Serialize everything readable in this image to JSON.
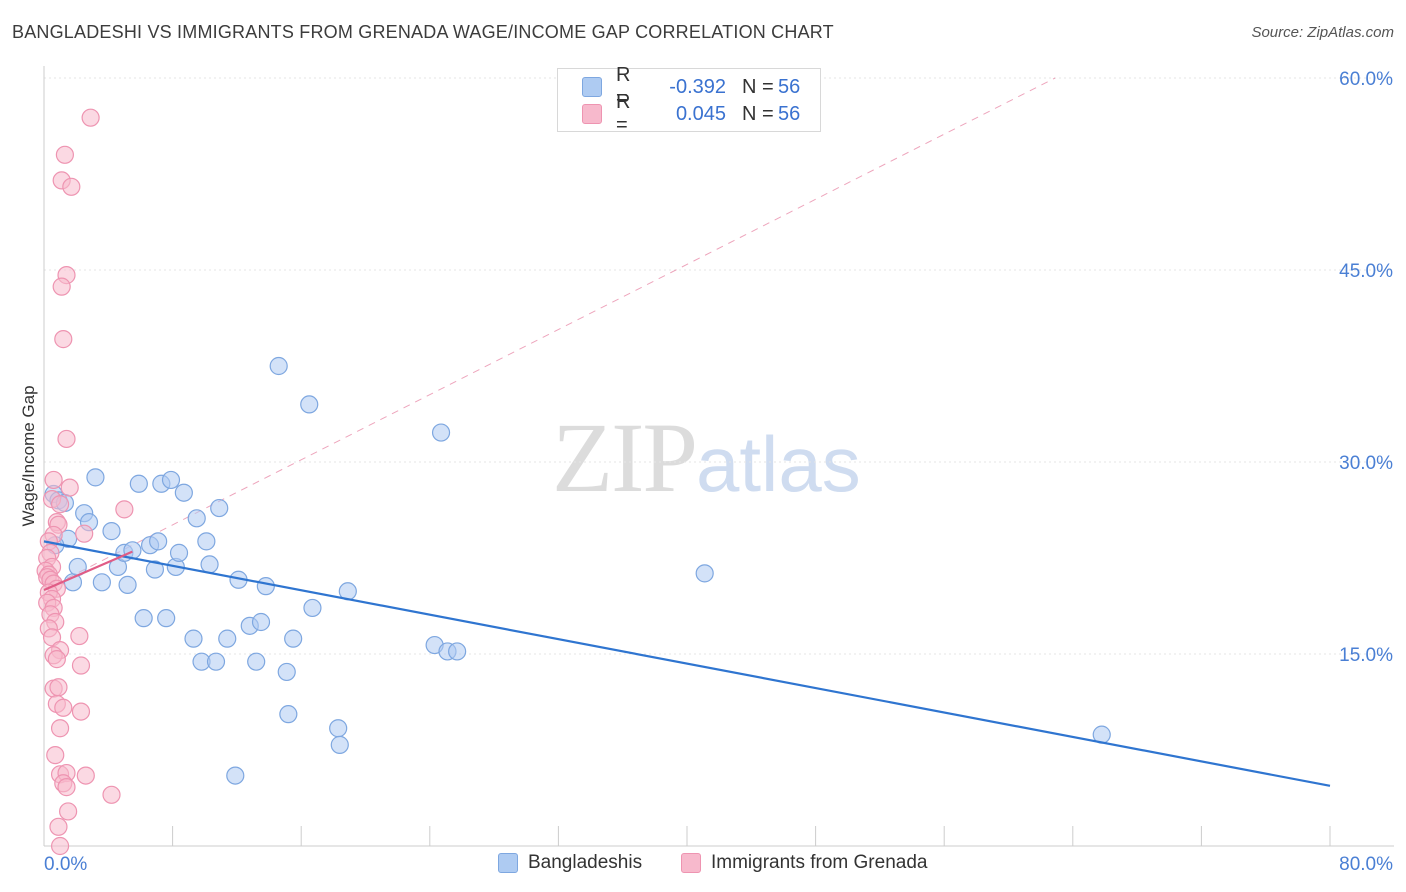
{
  "title": "BANGLADESHI VS IMMIGRANTS FROM GRENADA WAGE/INCOME GAP CORRELATION CHART",
  "source": "Source: ZipAtlas.com",
  "watermark": {
    "zip": "ZIP",
    "atlas": "atlas"
  },
  "legend": {
    "series1": {
      "r_label": "R =",
      "r_value": "-0.392",
      "n_label": "N =",
      "n_value": "56"
    },
    "series2": {
      "r_label": "R =",
      "r_value": "0.045",
      "n_label": "N =",
      "n_value": "56"
    }
  },
  "colors": {
    "blue_fill": "#aecbf2",
    "blue_stroke": "#7ea7e0",
    "blue_line": "#2f75d0",
    "pink_fill": "#f7b9cc",
    "pink_stroke": "#ee94b1",
    "pink_line": "#e05c86",
    "grid": "#e6e6e6",
    "axis_text": "#4a7fd4"
  },
  "chart_data": {
    "type": "scatter",
    "title": "BANGLADESHI VS IMMIGRANTS FROM GRENADA WAGE/INCOME GAP CORRELATION CHART",
    "xlabel": "",
    "ylabel": "Wage/Income Gap",
    "xlim": [
      0,
      80
    ],
    "ylim": [
      0,
      60
    ],
    "x_tick_labels": [
      "0.0%",
      "80.0%"
    ],
    "y_ticks": [
      15,
      30,
      45,
      60
    ],
    "y_tick_labels": [
      "15.0%",
      "30.0%",
      "45.0%",
      "60.0%"
    ],
    "legend_labels": [
      "Bangladeshis",
      "Immigrants from Grenada"
    ],
    "series": [
      {
        "name": "Bangladeshis",
        "r": -0.392,
        "n": 56,
        "trend": {
          "x": [
            0,
            80
          ],
          "y": [
            23.8,
            4.7
          ]
        },
        "points": [
          [
            0.6,
            27.5
          ],
          [
            0.9,
            27.0
          ],
          [
            1.3,
            26.8
          ],
          [
            1.5,
            24.0
          ],
          [
            0.7,
            23.5
          ],
          [
            1.8,
            20.6
          ],
          [
            2.1,
            21.8
          ],
          [
            2.5,
            26.0
          ],
          [
            2.8,
            25.3
          ],
          [
            3.2,
            28.8
          ],
          [
            3.6,
            20.6
          ],
          [
            4.2,
            24.6
          ],
          [
            4.6,
            21.8
          ],
          [
            5.0,
            22.9
          ],
          [
            5.2,
            20.4
          ],
          [
            5.5,
            23.1
          ],
          [
            5.9,
            28.3
          ],
          [
            6.2,
            17.8
          ],
          [
            6.6,
            23.5
          ],
          [
            6.9,
            21.6
          ],
          [
            7.1,
            23.8
          ],
          [
            7.3,
            28.3
          ],
          [
            7.6,
            17.8
          ],
          [
            7.9,
            28.6
          ],
          [
            8.2,
            21.8
          ],
          [
            8.4,
            22.9
          ],
          [
            8.7,
            27.6
          ],
          [
            9.3,
            16.2
          ],
          [
            9.5,
            25.6
          ],
          [
            9.8,
            14.4
          ],
          [
            10.1,
            23.8
          ],
          [
            10.3,
            22.0
          ],
          [
            10.7,
            14.4
          ],
          [
            10.9,
            26.4
          ],
          [
            11.4,
            16.2
          ],
          [
            11.9,
            5.5
          ],
          [
            12.1,
            20.8
          ],
          [
            12.8,
            17.2
          ],
          [
            13.2,
            14.4
          ],
          [
            13.5,
            17.5
          ],
          [
            13.8,
            20.3
          ],
          [
            14.6,
            37.5
          ],
          [
            15.1,
            13.6
          ],
          [
            15.2,
            10.3
          ],
          [
            15.5,
            16.2
          ],
          [
            16.5,
            34.5
          ],
          [
            16.7,
            18.6
          ],
          [
            18.3,
            9.2
          ],
          [
            18.4,
            7.9
          ],
          [
            18.9,
            19.9
          ],
          [
            24.3,
            15.7
          ],
          [
            25.1,
            15.2
          ],
          [
            25.7,
            15.2
          ],
          [
            24.7,
            32.3
          ],
          [
            41.1,
            21.3
          ],
          [
            65.8,
            8.7
          ]
        ]
      },
      {
        "name": "Immigrants from Grenada",
        "r": 0.045,
        "n": 56,
        "trend": {
          "x": [
            0,
            5.5
          ],
          "y": [
            20.0,
            23.0
          ]
        },
        "trend_dashed": {
          "x": [
            0,
            62.9
          ],
          "y": [
            20.0,
            60.0
          ]
        },
        "points": [
          [
            2.9,
            56.9
          ],
          [
            1.3,
            54.0
          ],
          [
            1.1,
            52.0
          ],
          [
            1.7,
            51.5
          ],
          [
            1.4,
            44.6
          ],
          [
            1.1,
            43.7
          ],
          [
            1.2,
            39.6
          ],
          [
            1.4,
            31.8
          ],
          [
            0.6,
            28.6
          ],
          [
            1.6,
            28.0
          ],
          [
            0.5,
            27.1
          ],
          [
            1.0,
            26.7
          ],
          [
            0.8,
            25.3
          ],
          [
            0.9,
            25.1
          ],
          [
            0.6,
            24.3
          ],
          [
            2.5,
            24.4
          ],
          [
            5.0,
            26.3
          ],
          [
            0.3,
            23.8
          ],
          [
            0.4,
            22.9
          ],
          [
            0.2,
            22.5
          ],
          [
            0.5,
            21.8
          ],
          [
            0.1,
            21.5
          ],
          [
            0.3,
            21.2
          ],
          [
            0.2,
            21.0
          ],
          [
            0.4,
            20.8
          ],
          [
            0.6,
            20.5
          ],
          [
            0.8,
            20.1
          ],
          [
            0.3,
            19.8
          ],
          [
            0.5,
            19.3
          ],
          [
            0.2,
            19.0
          ],
          [
            0.6,
            18.6
          ],
          [
            0.4,
            18.1
          ],
          [
            0.7,
            17.5
          ],
          [
            0.3,
            17.0
          ],
          [
            0.5,
            16.3
          ],
          [
            2.2,
            16.4
          ],
          [
            1.0,
            15.3
          ],
          [
            0.6,
            14.9
          ],
          [
            0.8,
            14.6
          ],
          [
            2.3,
            14.1
          ],
          [
            0.6,
            12.3
          ],
          [
            0.9,
            12.4
          ],
          [
            0.8,
            11.1
          ],
          [
            1.2,
            10.8
          ],
          [
            2.3,
            10.5
          ],
          [
            1.0,
            9.2
          ],
          [
            0.7,
            7.1
          ],
          [
            1.0,
            5.6
          ],
          [
            1.4,
            5.7
          ],
          [
            2.6,
            5.5
          ],
          [
            1.2,
            4.9
          ],
          [
            1.4,
            4.6
          ],
          [
            4.2,
            4.0
          ],
          [
            1.5,
            2.7
          ],
          [
            0.9,
            1.5
          ],
          [
            1.0,
            0.0
          ]
        ]
      }
    ]
  }
}
